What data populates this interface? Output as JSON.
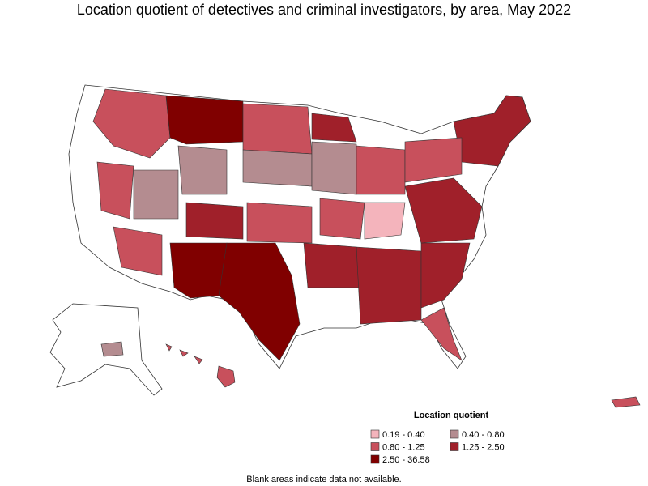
{
  "title": "Location quotient of detectives and criminal investigators, by area, May 2022",
  "legend": {
    "title": "Location quotient",
    "items": [
      {
        "label": "0.19 - 0.40",
        "color": "#f4b4bc"
      },
      {
        "label": "0.40 - 0.80",
        "color": "#b48c90"
      },
      {
        "label": "0.80 - 1.25",
        "color": "#c8505c"
      },
      {
        "label": "1.25 - 2.50",
        "color": "#a0202a"
      },
      {
        "label": "2.50 - 36.58",
        "color": "#800000"
      }
    ]
  },
  "note": "Blank areas indicate data not available."
}
